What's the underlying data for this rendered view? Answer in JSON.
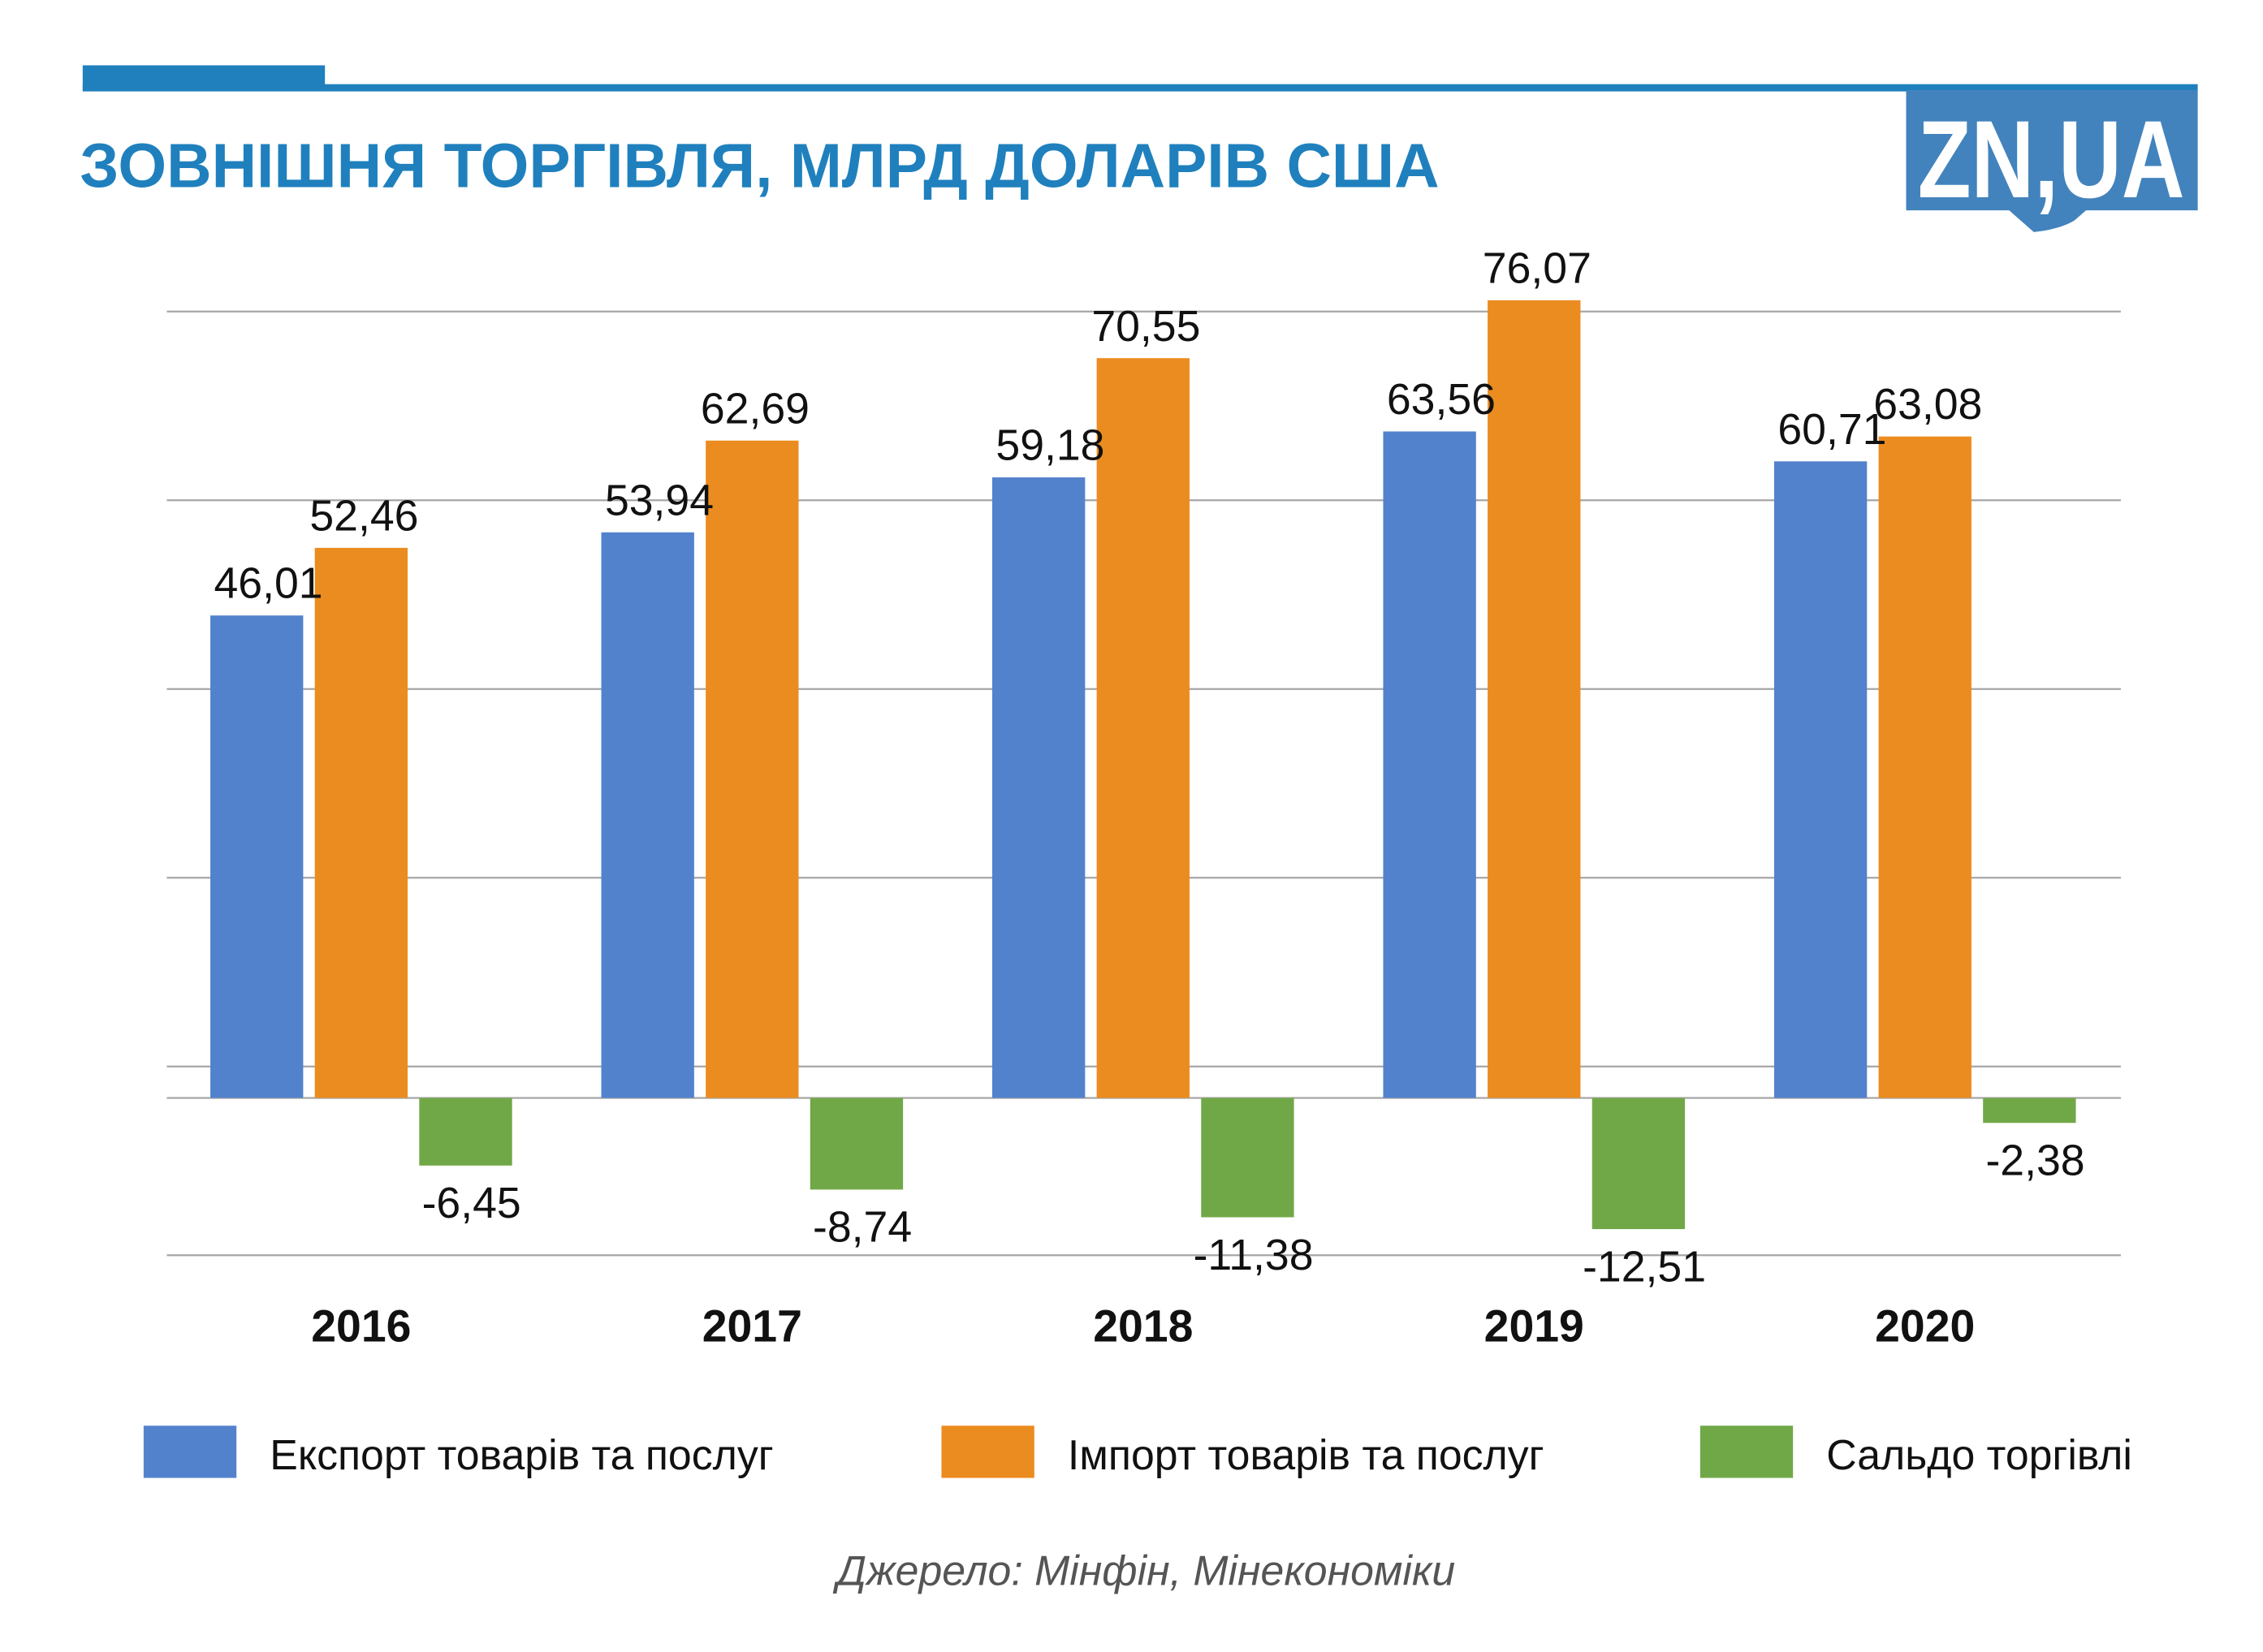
{
  "header": {
    "title": "ЗОВНІШНЯ ТОРГІВЛЯ, МЛРД ДОЛАРІВ США",
    "logo_text": "ZN,UA"
  },
  "chart_data": {
    "type": "bar",
    "title": "ЗОВНІШНЯ ТОРГІВЛЯ, МЛРД ДОЛАРІВ США",
    "xlabel": "",
    "ylabel": "",
    "categories": [
      "2016",
      "2017",
      "2018",
      "2019",
      "2020"
    ],
    "series": [
      {
        "name": "Експорт товарів та послуг",
        "color": "#5382cd",
        "values": [
          46.01,
          53.94,
          59.18,
          63.56,
          60.71
        ],
        "labels": [
          "46,01",
          "53,94",
          "59,18",
          "63,56",
          "60,71"
        ]
      },
      {
        "name": "Імпорт товарів та послуг",
        "color": "#eb8c20",
        "values": [
          52.46,
          62.69,
          70.55,
          76.07,
          63.08
        ],
        "labels": [
          "52,46",
          "62,69",
          "70,55",
          "76,07",
          "63,08"
        ]
      },
      {
        "name": "Сальдо торгівлі",
        "color": "#71a847",
        "values": [
          -6.45,
          -8.74,
          -11.38,
          -12.51,
          -2.38
        ],
        "labels": [
          "-6,45",
          "-8,74",
          "-11,38",
          "-12,51",
          "-2,38"
        ]
      }
    ],
    "gridlines": [
      -15,
      3,
      21,
      39,
      57,
      75
    ],
    "ylim": [
      -15,
      75
    ],
    "grid": true,
    "legend_position": "bottom"
  },
  "source": "Джерело: Мінфін, Мінекономіки"
}
